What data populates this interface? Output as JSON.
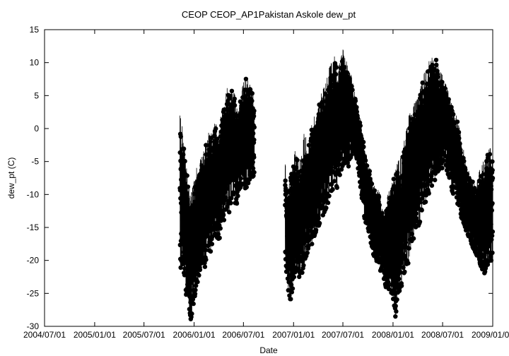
{
  "chart_data": {
    "type": "scatter",
    "title": "CEOP CEOP_AP1Pakistan Askole  dew_pt",
    "xlabel": "Date",
    "ylabel": "dew_pt (C)",
    "xlim": [
      "2004-07-01",
      "2009-01-01"
    ],
    "ylim": [
      -30,
      15
    ],
    "x_ticks": [
      "2004/07/01",
      "2005/01/01",
      "2005/07/01",
      "2006/01/01",
      "2006/07/01",
      "2007/01/01",
      "2007/07/01",
      "2008/01/01",
      "2008/07/01",
      "2009/01/01"
    ],
    "y_ticks": [
      -30,
      -25,
      -20,
      -15,
      -10,
      -5,
      0,
      5,
      10,
      15
    ],
    "grid": false,
    "legend": "none",
    "marker": "filled-circle",
    "connected": true,
    "color": "#000000",
    "series": [
      {
        "x": [
          "2005-11-10",
          "2005-11-20",
          "2005-12-01",
          "2005-12-10",
          "2005-12-20",
          "2006-01-01",
          "2006-01-10",
          "2006-01-20",
          "2006-02-01",
          "2006-02-10",
          "2006-02-20",
          "2006-03-01",
          "2006-03-10",
          "2006-03-20",
          "2006-04-01",
          "2006-04-10",
          "2006-04-20",
          "2006-05-01",
          "2006-05-10",
          "2006-05-20",
          "2006-06-01",
          "2006-06-10",
          "2006-06-20",
          "2006-07-01",
          "2006-07-10",
          "2006-07-20",
          "2006-08-01",
          "2006-08-10"
        ],
        "high": [
          2,
          0,
          -5,
          -8,
          -10,
          -8,
          -6,
          -5,
          -4,
          -2,
          -1,
          0,
          0,
          1,
          -1,
          2,
          4,
          6,
          7,
          6,
          5,
          3,
          5,
          7,
          8,
          7,
          6,
          4
        ],
        "low": [
          -24,
          -22,
          -25,
          -26,
          -29,
          -26,
          -24,
          -22,
          -20,
          -21,
          -18,
          -19,
          -17,
          -16,
          -17,
          -16,
          -14,
          -12,
          -13,
          -10,
          -12,
          -11,
          -9,
          -9,
          -10,
          -8,
          -7,
          -8
        ]
      },
      {
        "x": [
          "2006-12-01",
          "2006-12-10",
          "2006-12-20",
          "2007-01-01",
          "2007-01-10",
          "2007-01-20",
          "2007-02-01",
          "2007-02-10",
          "2007-02-20",
          "2007-03-01",
          "2007-03-10",
          "2007-03-20",
          "2007-04-01",
          "2007-04-10",
          "2007-04-20",
          "2007-05-01",
          "2007-05-10",
          "2007-05-20",
          "2007-06-01",
          "2007-06-10",
          "2007-06-20",
          "2007-07-01",
          "2007-07-10",
          "2007-07-20",
          "2007-08-01",
          "2007-08-10",
          "2007-08-20",
          "2007-09-01",
          "2007-09-10",
          "2007-09-20",
          "2007-10-01",
          "2007-10-10",
          "2007-10-20",
          "2007-11-01",
          "2007-11-10",
          "2007-11-20",
          "2007-12-01",
          "2007-12-10",
          "2007-12-20",
          "2008-01-01",
          "2008-01-10",
          "2008-01-20",
          "2008-02-01",
          "2008-02-10",
          "2008-02-20",
          "2008-03-01",
          "2008-03-10",
          "2008-03-20",
          "2008-04-01",
          "2008-04-10",
          "2008-04-20",
          "2008-05-01",
          "2008-05-10",
          "2008-05-20",
          "2008-06-01",
          "2008-06-10",
          "2008-06-20",
          "2008-07-01",
          "2008-07-10",
          "2008-07-20",
          "2008-08-01",
          "2008-08-10",
          "2008-08-20",
          "2008-09-01",
          "2008-09-10",
          "2008-09-20",
          "2008-10-01",
          "2008-10-10",
          "2008-10-20",
          "2008-11-01",
          "2008-11-10",
          "2008-11-20",
          "2008-12-01",
          "2008-12-10",
          "2008-12-20",
          "2009-01-01"
        ],
        "high": [
          -5,
          -10,
          -7,
          -4,
          -3,
          -5,
          -4,
          0,
          -2,
          -1,
          1,
          2,
          3,
          5,
          6,
          7,
          9,
          10,
          11,
          9,
          10,
          12,
          11,
          9,
          8,
          6,
          4,
          2,
          0,
          -3,
          -5,
          -6,
          -8,
          -10,
          -9,
          -12,
          -13,
          -10,
          -9,
          -8,
          -6,
          -5,
          -4,
          -2,
          0,
          3,
          2,
          4,
          5,
          6,
          8,
          9,
          10,
          11,
          10,
          11,
          9,
          8,
          7,
          6,
          4,
          3,
          2,
          0,
          -2,
          -4,
          -6,
          -7,
          -8,
          -9,
          -7,
          -5,
          -5,
          -4,
          -3,
          -3
        ],
        "low": [
          -20,
          -24,
          -26,
          -25,
          -21,
          -23,
          -22,
          -20,
          -19,
          -17,
          -18,
          -16,
          -15,
          -14,
          -13,
          -12,
          -11,
          -10,
          -8,
          -9,
          -7,
          -6,
          -5,
          -6,
          -4,
          -3,
          -5,
          -8,
          -11,
          -14,
          -15,
          -17,
          -19,
          -20,
          -21,
          -22,
          -23,
          -25,
          -24,
          -26,
          -29,
          -25,
          -24,
          -22,
          -21,
          -20,
          -18,
          -16,
          -15,
          -14,
          -12,
          -11,
          -10,
          -9,
          -8,
          -7,
          -6,
          -6,
          -5,
          -7,
          -9,
          -10,
          -11,
          -12,
          -14,
          -15,
          -16,
          -17,
          -18,
          -19,
          -20,
          -21,
          -22,
          -21,
          -20,
          -20
        ]
      }
    ]
  }
}
